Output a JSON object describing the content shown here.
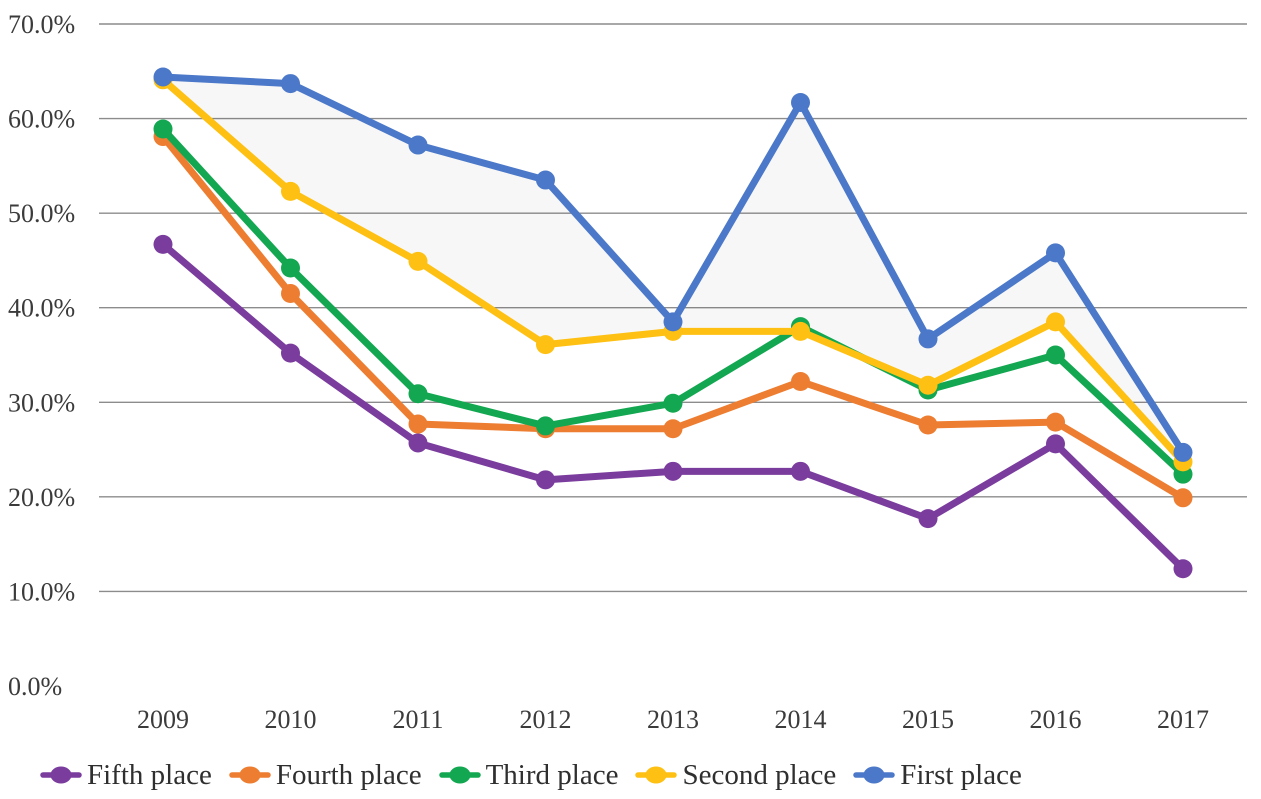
{
  "chart_data": {
    "type": "line",
    "title": "",
    "xlabel": "",
    "ylabel": "",
    "x": [
      "2009",
      "2010",
      "2011",
      "2012",
      "2013",
      "2014",
      "2015",
      "2016",
      "2017"
    ],
    "y_axis": {
      "min": 0,
      "max": 70,
      "step": 10,
      "unit": "%",
      "tick_labels_top_to_bottom": [
        "70.0%",
        "60.0%",
        "50.0%",
        "40.0%",
        "30.0%",
        "20.0%",
        "10.0%",
        "0.0%"
      ],
      "gridlines_at": [
        10,
        20,
        30,
        40,
        50,
        60,
        70
      ],
      "gridline_color": "#8c8c8c"
    },
    "legend_position": "bottom",
    "grid": "horizontal only",
    "series": [
      {
        "name": "Fifth place",
        "color": "#7A3C9D",
        "values": [
          46.7,
          35.2,
          25.7,
          21.8,
          22.7,
          22.7,
          17.7,
          25.6,
          12.4
        ]
      },
      {
        "name": "Fourth place",
        "color": "#ED7D31",
        "values": [
          58.1,
          41.5,
          27.7,
          27.2,
          27.2,
          32.2,
          27.6,
          27.9,
          19.9
        ]
      },
      {
        "name": "Third place",
        "color": "#12A750",
        "values": [
          58.9,
          44.2,
          30.9,
          27.5,
          29.9,
          38.0,
          31.3,
          35.0,
          22.4
        ]
      },
      {
        "name": "Second place",
        "color": "#FDC013",
        "values": [
          64.1,
          52.3,
          44.9,
          36.1,
          37.5,
          37.5,
          31.8,
          38.5,
          23.7
        ]
      },
      {
        "name": "First place",
        "color": "#4B78C8",
        "values": [
          64.4,
          63.7,
          57.2,
          53.5,
          38.5,
          61.7,
          36.7,
          45.8,
          24.7
        ]
      }
    ],
    "band_fill": {
      "between": [
        "First place",
        "Second place"
      ],
      "color": "rgba(0,0,0,0.03)"
    },
    "marker": "circle",
    "text_color": "#3b3b3b"
  }
}
